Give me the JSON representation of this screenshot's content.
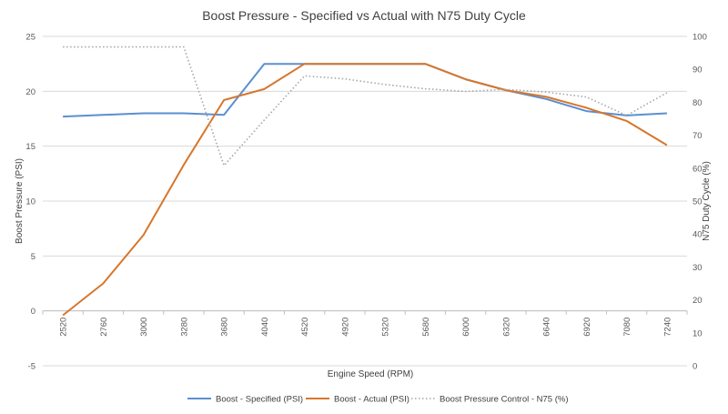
{
  "chart_data": {
    "type": "line",
    "title": "Boost Pressure - Specified vs Actual with N75 Duty Cycle",
    "xlabel": "Engine Speed (RPM)",
    "ylabel": "Boost Pressure (PSI)",
    "y2label": "N75 Duty Cycle (%)",
    "categories": [
      "2520",
      "2760",
      "3000",
      "3280",
      "3680",
      "4040",
      "4520",
      "4920",
      "5320",
      "5680",
      "6000",
      "6320",
      "6640",
      "6920",
      "7080",
      "7240"
    ],
    "ylim": [
      -5,
      25
    ],
    "yticks": [
      "25",
      "20",
      "15",
      "10",
      "5",
      "0",
      "-5"
    ],
    "y2lim": [
      0,
      100
    ],
    "y2ticks": [
      "100",
      "90",
      "80",
      "70",
      "60",
      "50",
      "40",
      "30",
      "20",
      "10",
      "0"
    ],
    "grid": true,
    "legend_position": "bottom",
    "series": [
      {
        "name": "Boost - Specified (PSI)",
        "axis": "left",
        "color": "#5b8fd0",
        "style": "solid",
        "values": [
          17.7,
          17.85,
          18.0,
          18.0,
          17.85,
          22.5,
          22.5,
          22.5,
          22.5,
          22.5,
          21.1,
          20.1,
          19.3,
          18.2,
          17.8,
          18.0
        ]
      },
      {
        "name": "Boost - Actual (PSI)",
        "axis": "left",
        "color": "#d7762c",
        "style": "solid",
        "values": [
          -0.4,
          2.5,
          6.9,
          13.3,
          19.2,
          20.2,
          22.5,
          22.5,
          22.5,
          22.5,
          21.1,
          20.1,
          19.5,
          18.5,
          17.3,
          15.1
        ]
      },
      {
        "name": "Boost Pressure Control - N75 (%)",
        "axis": "right",
        "color": "#a6a6a6",
        "style": "dotted",
        "values": [
          96.8,
          96.8,
          96.8,
          96.8,
          60.8,
          74.6,
          88.0,
          87.1,
          85.4,
          84.1,
          83.3,
          83.9,
          83.1,
          81.6,
          76.0,
          82.9
        ]
      }
    ]
  }
}
